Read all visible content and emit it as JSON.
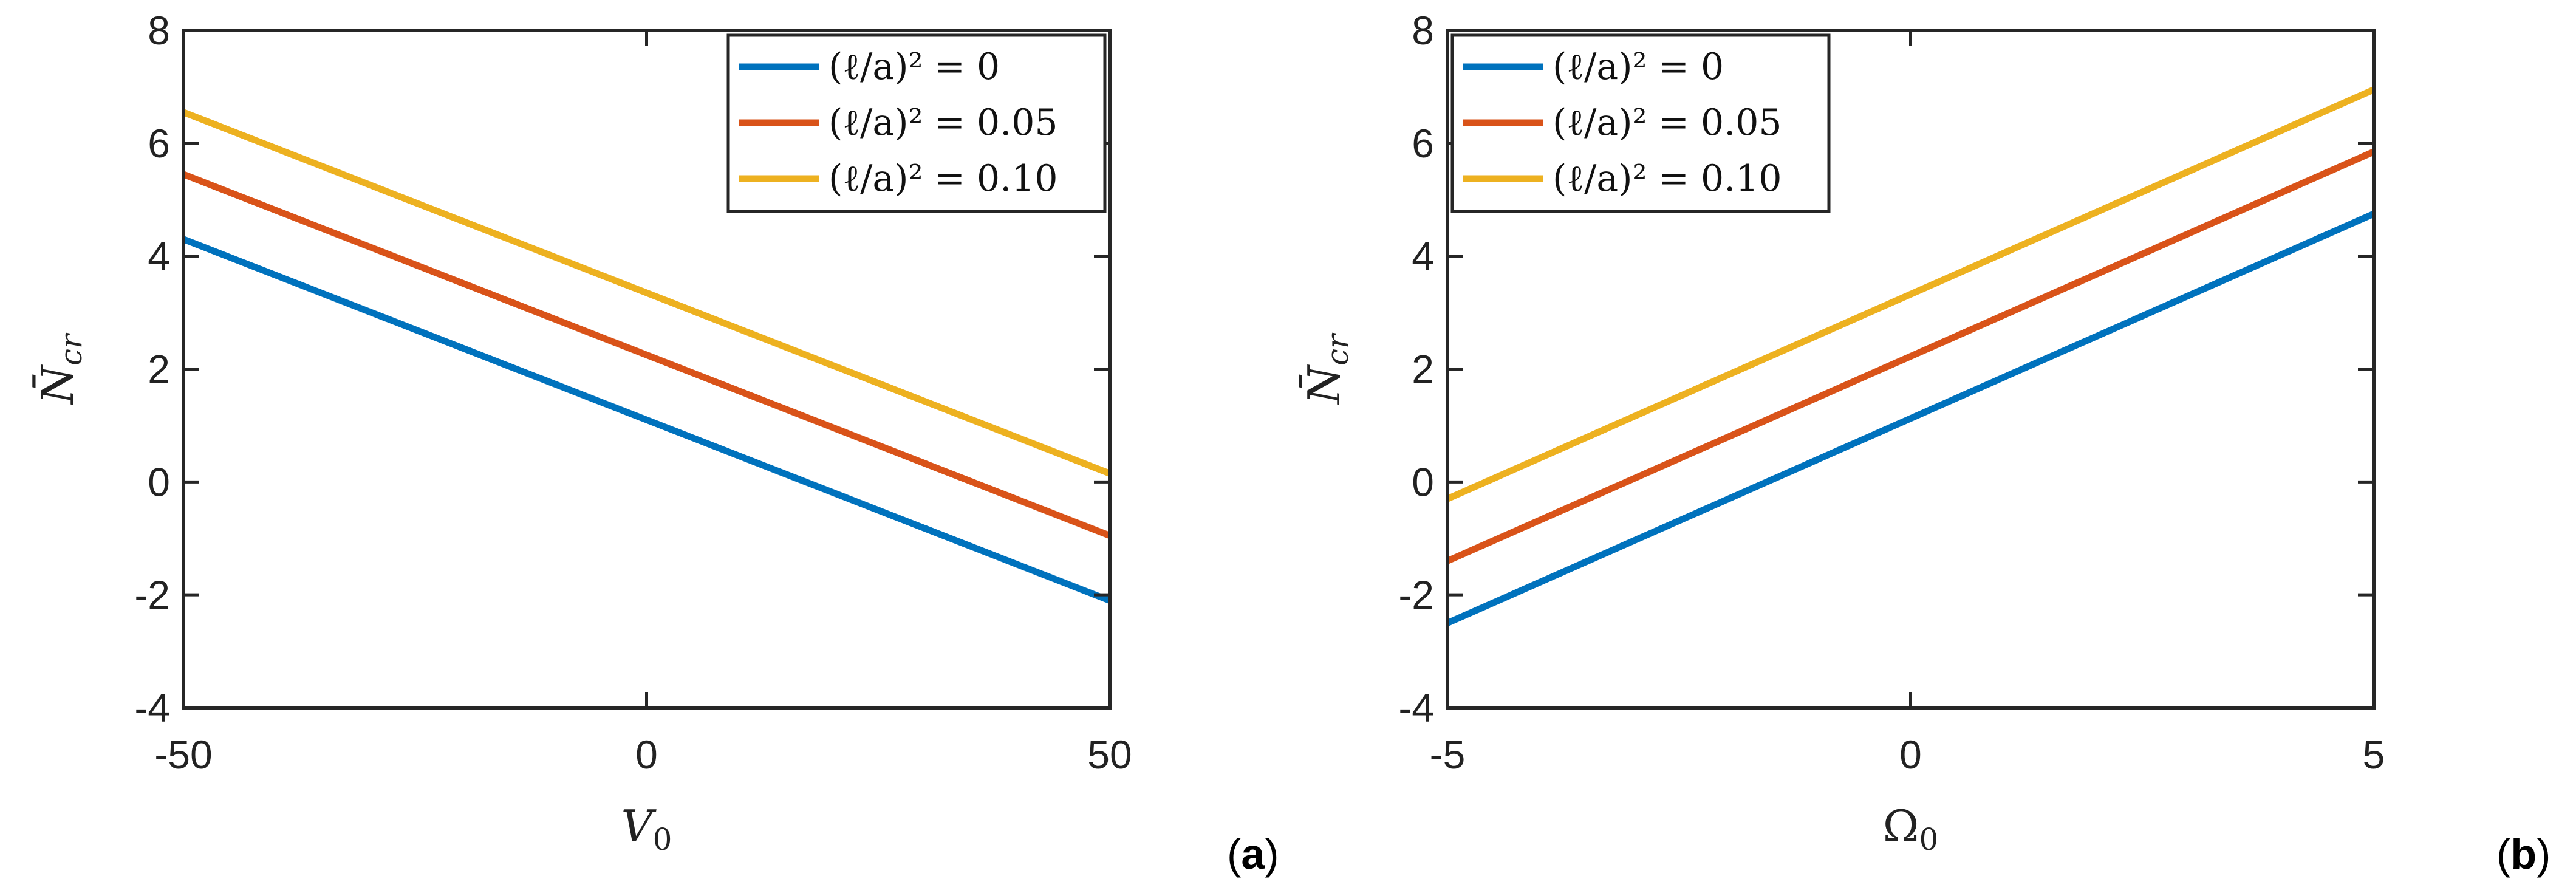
{
  "colors": {
    "series": [
      "#0072BD",
      "#D95319",
      "#EDB120"
    ],
    "axis": "#262626",
    "text": "#222222"
  },
  "chart_data": [
    {
      "type": "line",
      "panel_label": "a",
      "xlabel": "V",
      "xlabel_sub": "0",
      "ylabel": "N̄",
      "ylabel_sub": "cr",
      "xlim": [
        -50,
        50
      ],
      "ylim": [
        -4,
        8
      ],
      "xticks": [
        -50,
        0,
        50
      ],
      "xtick_labels": [
        "-50",
        "0",
        "50"
      ],
      "yticks": [
        -4,
        -2,
        0,
        2,
        4,
        6,
        8
      ],
      "ytick_labels": [
        "-4",
        "-2",
        "0",
        "2",
        "4",
        "6",
        "8"
      ],
      "grid": false,
      "legend_position": "top-right",
      "x": [
        -50,
        50
      ],
      "series": [
        {
          "name": "(ℓ/a)² = 0",
          "values": [
            4.3,
            -2.1
          ]
        },
        {
          "name": "(ℓ/a)² = 0.05",
          "values": [
            5.45,
            -0.95
          ]
        },
        {
          "name": "(ℓ/a)² = 0.10",
          "values": [
            6.55,
            0.15
          ]
        }
      ]
    },
    {
      "type": "line",
      "panel_label": "b",
      "xlabel": "Ω",
      "xlabel_sub": "0",
      "ylabel": "N̄",
      "ylabel_sub": "cr",
      "xlim": [
        -5,
        5
      ],
      "ylim": [
        -4,
        8
      ],
      "xticks": [
        -5,
        0,
        5
      ],
      "xtick_labels": [
        "-5",
        "0",
        "5"
      ],
      "yticks": [
        -4,
        -2,
        0,
        2,
        4,
        6,
        8
      ],
      "ytick_labels": [
        "-4",
        "-2",
        "0",
        "2",
        "4",
        "6",
        "8"
      ],
      "grid": false,
      "legend_position": "top-left",
      "x": [
        -5,
        5
      ],
      "series": [
        {
          "name": "(ℓ/a)² = 0",
          "values": [
            -2.5,
            4.75
          ]
        },
        {
          "name": "(ℓ/a)² = 0.05",
          "values": [
            -1.4,
            5.85
          ]
        },
        {
          "name": "(ℓ/a)² = 0.10",
          "values": [
            -0.3,
            6.95
          ]
        }
      ]
    }
  ]
}
